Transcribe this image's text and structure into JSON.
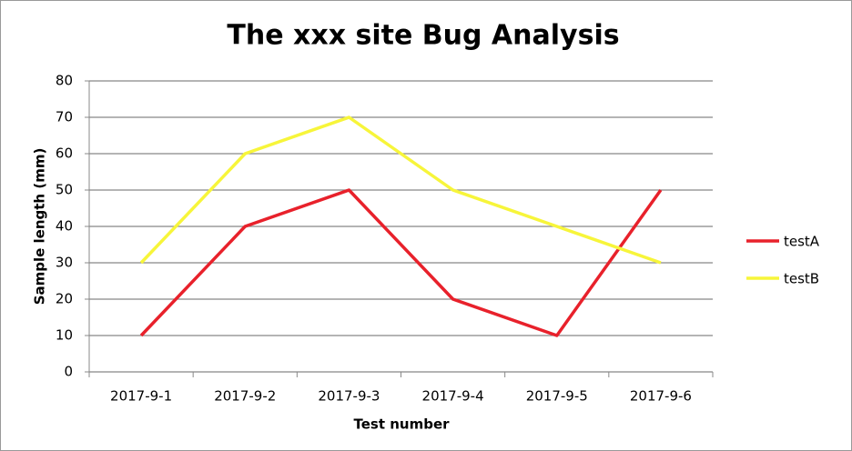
{
  "chart_data": {
    "type": "line",
    "title": "The xxx site Bug Analysis",
    "x_label": "Test number",
    "y_label": "Sample length (mm)",
    "categories": [
      "2017-9-1",
      "2017-9-2",
      "2017-9-3",
      "2017-9-4",
      "2017-9-5",
      "2017-9-6"
    ],
    "series": [
      {
        "name": "testA",
        "color": "#e8212b",
        "values": [
          10,
          40,
          50,
          20,
          10,
          50
        ]
      },
      {
        "name": "testB",
        "color": "#f7f53a",
        "values": [
          30,
          60,
          70,
          50,
          40,
          30
        ]
      }
    ],
    "ylim": [
      0,
      80
    ],
    "yticks": [
      0,
      10,
      20,
      30,
      40,
      50,
      60,
      70,
      80
    ],
    "grid": true,
    "legend": "right"
  }
}
